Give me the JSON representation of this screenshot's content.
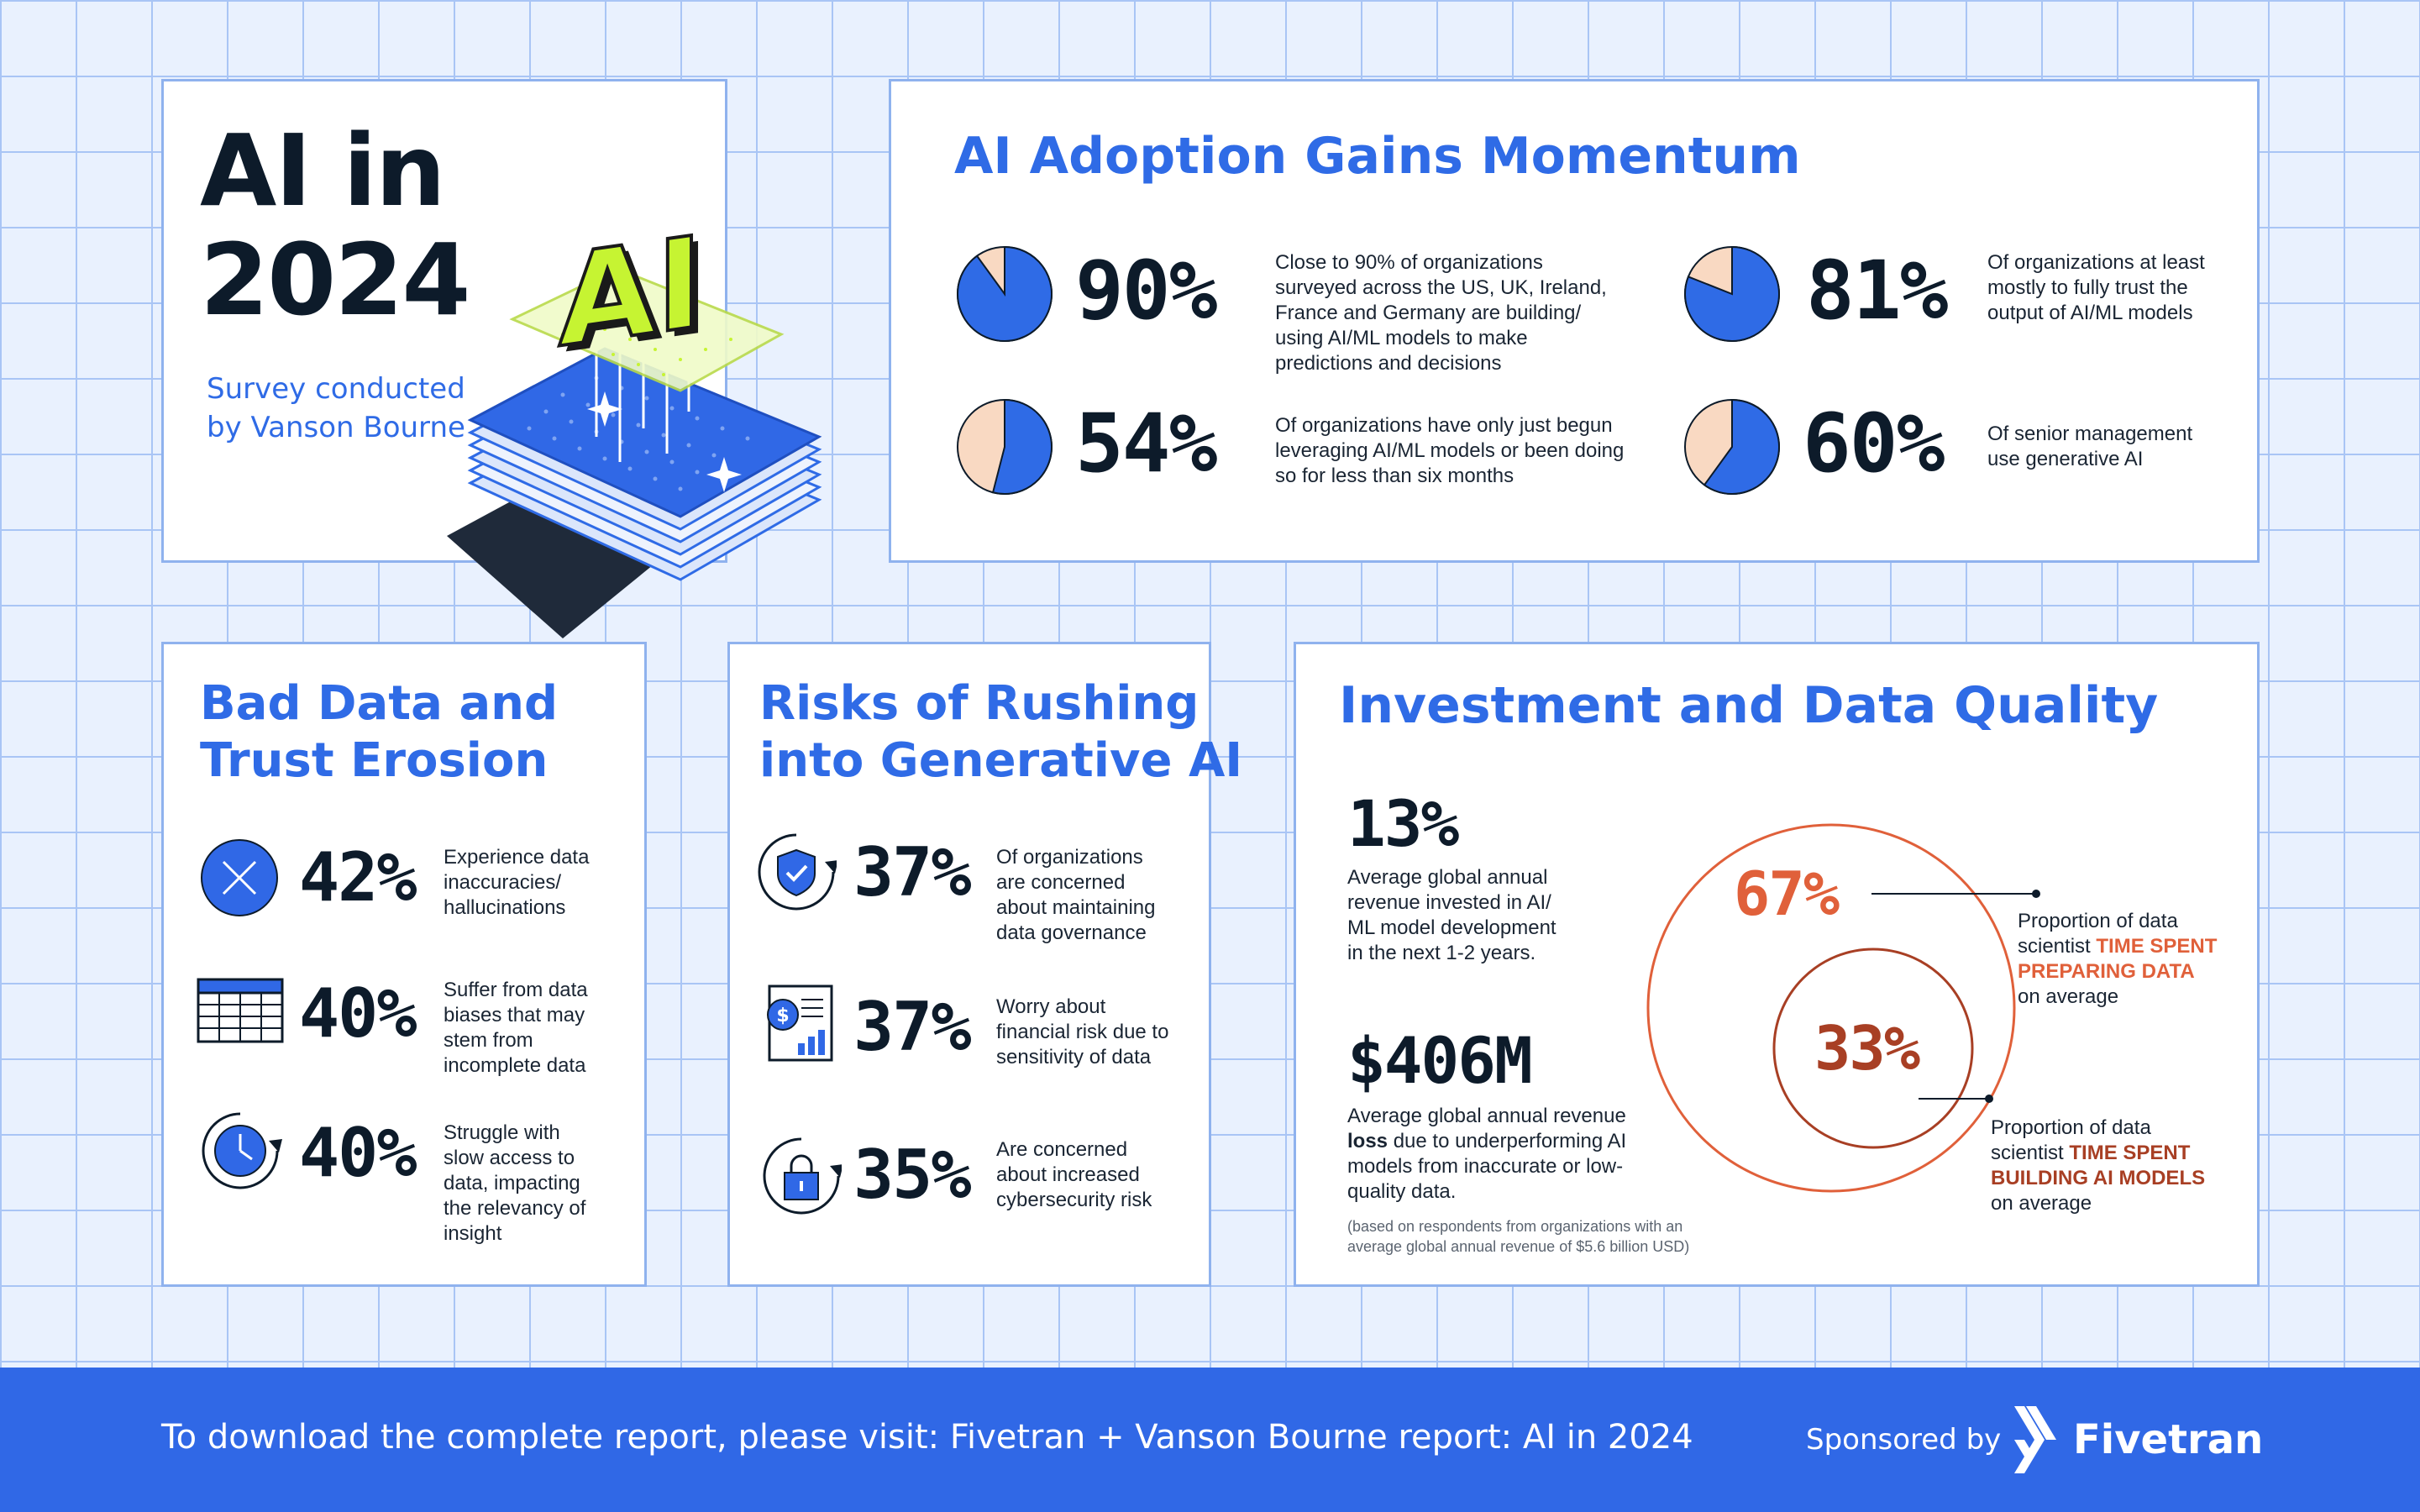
{
  "colors": {
    "brand_blue": "#2f6be6",
    "dark": "#0d1b2a",
    "peach": "#f9d9c2",
    "orange": "#e0603a",
    "rust": "#a83f24",
    "lime": "#c6f432",
    "footer_blue": "#3068e6"
  },
  "hero": {
    "title_line1": "AI in",
    "title_line2": "2024",
    "subtitle_line1": "Survey conducted",
    "subtitle_line2": "by Vanson Bourne",
    "logo_text": "AI"
  },
  "adoption": {
    "title": "AI Adoption Gains Momentum",
    "stats": [
      {
        "value": "90%",
        "fraction": 0.9,
        "desc": [
          "Close to 90% of organizations",
          "surveyed across the US, UK, Ireland,",
          "France and Germany are building/",
          "using AI/ML models to make",
          "predictions and decisions"
        ]
      },
      {
        "value": "81%",
        "fraction": 0.81,
        "desc": [
          "Of organizations at least",
          "mostly to fully trust the",
          "output of AI/ML models"
        ]
      },
      {
        "value": "54%",
        "fraction": 0.54,
        "desc": [
          "Of organizations have only just begun",
          "leveraging AI/ML models or been doing",
          "so for less than six months"
        ]
      },
      {
        "value": "60%",
        "fraction": 0.6,
        "desc": [
          "Of senior management",
          "use generative AI"
        ]
      }
    ]
  },
  "bad_data": {
    "title_line1": "Bad Data and",
    "title_line2": "Trust Erosion",
    "stats": [
      {
        "icon": "x-circle-icon",
        "value": "42%",
        "desc": [
          "Experience data",
          "inaccuracies/",
          "hallucinations"
        ]
      },
      {
        "icon": "table-icon",
        "value": "40%",
        "desc": [
          "Suffer from data",
          "biases that may",
          "stem from",
          "incomplete data"
        ]
      },
      {
        "icon": "clock-icon",
        "value": "40%",
        "desc": [
          "Struggle with",
          "slow access to",
          "data, impacting",
          "the relevancy of",
          "insight"
        ]
      }
    ]
  },
  "risks": {
    "title_line1": "Risks of Rushing",
    "title_line2": "into Generative AI",
    "stats": [
      {
        "icon": "shield-check-icon",
        "value": "37%",
        "desc": [
          "Of organizations",
          "are concerned",
          "about maintaining",
          "data governance"
        ]
      },
      {
        "icon": "financial-report-icon",
        "value": "37%",
        "desc": [
          "Worry about",
          "financial risk due to",
          "sensitivity of data"
        ]
      },
      {
        "icon": "lock-icon",
        "value": "35%",
        "desc": [
          "Are concerned",
          "about increased",
          "cybersecurity risk"
        ]
      }
    ]
  },
  "investment": {
    "title": "Investment and Data Quality",
    "stat1": {
      "value": "13%",
      "desc": [
        "Average global annual",
        "revenue invested in AI/",
        "ML model development",
        "in the next 1-2 years."
      ]
    },
    "stat2": {
      "value": "$406M",
      "desc_line1": "Average global annual revenue",
      "desc_bold": "loss",
      "desc_line2_rest": " due to underperforming AI",
      "desc_line3": "models from inaccurate or low-",
      "desc_line4": "quality data.",
      "note_line1": "(based on respondents from organizations with an",
      "note_line2": "average global annual revenue of $5.6 billion USD)"
    },
    "venn": {
      "outer_value": "67%",
      "outer_fraction": 0.67,
      "outer_label_line1": "Proportion of data",
      "outer_label_line2_prefix": "scientist ",
      "outer_label_hl1": "TIME SPENT",
      "outer_label_hl2": "PREPARING DATA",
      "outer_label_line4": "on average",
      "inner_value": "33%",
      "inner_fraction": 0.33,
      "inner_label_line1": "Proportion of data",
      "inner_label_line2_prefix": "scientist ",
      "inner_label_hl1": "TIME SPENT",
      "inner_label_hl2": "BUILDING AI MODELS",
      "inner_label_line4": "on average"
    }
  },
  "footer": {
    "text": "To download the complete report, please visit: Fivetran + Vanson Bourne report: AI in 2024",
    "sponsored": "Sponsored by",
    "brand": "Fivetran"
  }
}
